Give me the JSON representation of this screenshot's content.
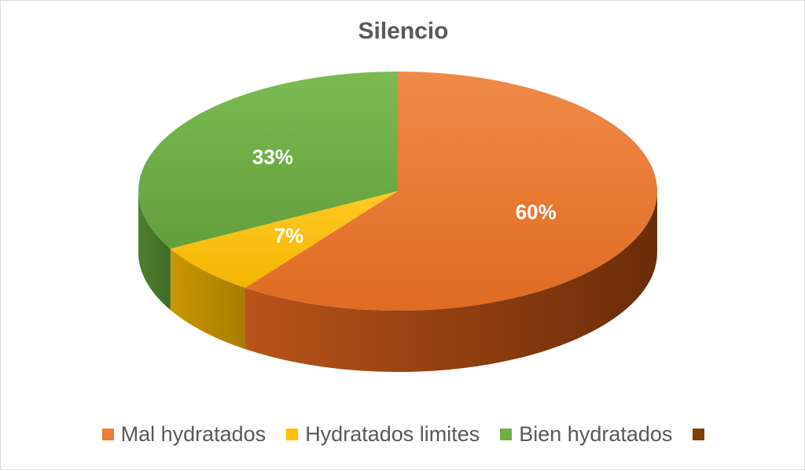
{
  "chart_data": {
    "type": "pie",
    "title": "Silencio",
    "categories": [
      "Mal hydratados",
      "Hydratados limites",
      "Bien hydratados",
      ""
    ],
    "values": [
      60,
      7,
      33,
      0
    ],
    "data_labels": [
      "60%",
      "7%",
      "33%",
      ""
    ],
    "colors": [
      "#ed7d31",
      "#ffc000",
      "#70ad47",
      "#843c0c"
    ],
    "legend_position": "bottom",
    "style": "3d"
  }
}
